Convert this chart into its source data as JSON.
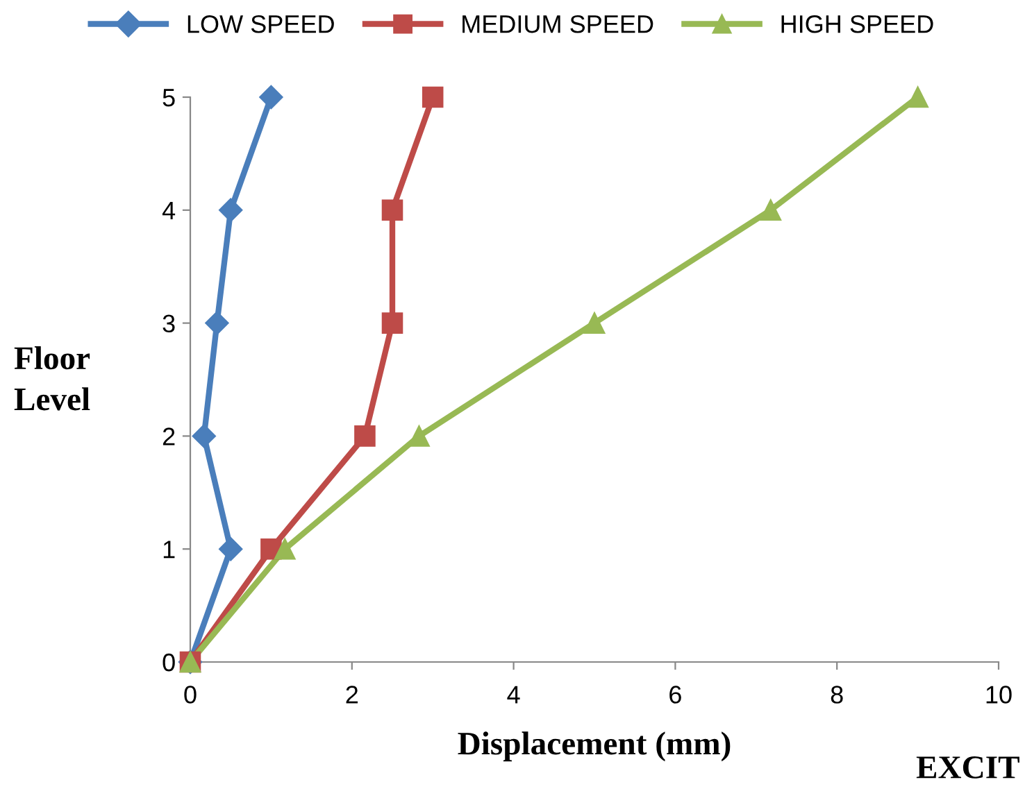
{
  "chart_data": {
    "type": "line",
    "xlabel": "Displacement (mm)",
    "ylabel": "Floor\nLevel",
    "annotations": [
      "EXCIT"
    ],
    "xlim": [
      0,
      10
    ],
    "xticks": [
      0,
      2,
      4,
      6,
      8,
      10
    ],
    "ylim": [
      0,
      5
    ],
    "yticks": [
      0,
      1,
      2,
      3,
      4,
      5
    ],
    "grid": false,
    "legend": "top",
    "line_style": "solid",
    "series": [
      {
        "name": "LOW SPEED",
        "color": "#4a7ebb",
        "marker": "diamond",
        "x": [
          0,
          0.5,
          0.17,
          0.33,
          0.5,
          1.0
        ],
        "values": [
          0,
          1,
          2,
          3,
          4,
          5
        ]
      },
      {
        "name": "MEDIUM SPEED",
        "color": "#be4b48",
        "marker": "square",
        "x": [
          0,
          1.0,
          2.16,
          2.5,
          2.5,
          3.0
        ],
        "values": [
          0,
          1,
          2,
          3,
          4,
          5
        ]
      },
      {
        "name": "HIGH SPEED",
        "color": "#98b954",
        "marker": "triangle",
        "x": [
          0,
          1.17,
          2.83,
          5.0,
          7.18,
          9.0
        ],
        "values": [
          0,
          1,
          2,
          3,
          4,
          5
        ]
      }
    ]
  }
}
